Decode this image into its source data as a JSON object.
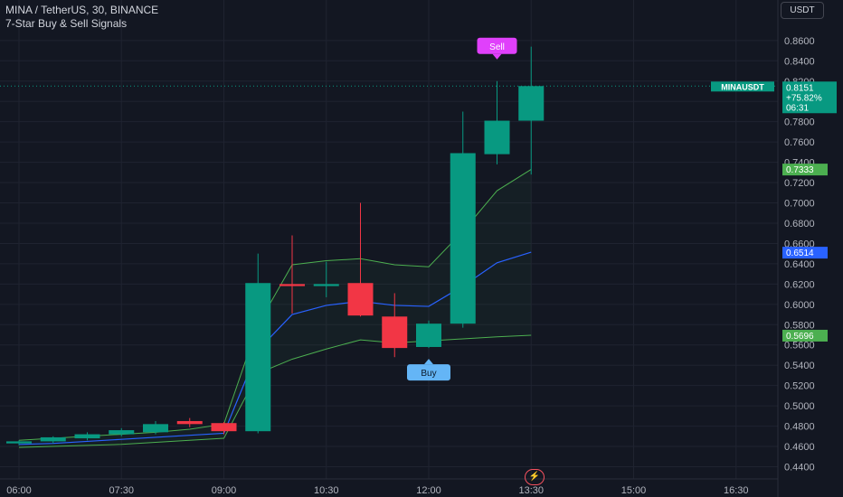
{
  "legend": {
    "title": "MINA / TetherUS, 30, BINANCE",
    "indicator": "7-Star Buy & Sell Signals"
  },
  "currency_button": "USDT",
  "icons": {
    "flash": "lightning-icon"
  },
  "colors": {
    "background": "#131722",
    "up": "#089981",
    "down": "#f23645",
    "band_line": "#4caf50",
    "mid_line": "#2962ff",
    "sell_label": "#e040fb",
    "buy_label": "#64b5f6"
  },
  "chart_data": {
    "type": "candlestick",
    "y_axis": {
      "range": [
        0.43,
        0.875
      ],
      "ticks": [
        "0.8600",
        "0.8400",
        "0.8200",
        "0.8000",
        "0.7800",
        "0.7600",
        "0.7400",
        "0.7200",
        "0.7000",
        "0.6800",
        "0.6600",
        "0.6400",
        "0.6200",
        "0.6000",
        "0.5800",
        "0.5600",
        "0.5400",
        "0.5200",
        "0.5000",
        "0.4800",
        "0.4600",
        "0.4400"
      ]
    },
    "x_axis": {
      "ticks": [
        "06:00",
        "07:30",
        "09:00",
        "10:30",
        "12:00",
        "13:30",
        "15:00",
        "16:30"
      ]
    },
    "candles": [
      {
        "time": "06:00",
        "open": 0.463,
        "high": 0.466,
        "low": 0.461,
        "close": 0.465
      },
      {
        "time": "06:30",
        "open": 0.465,
        "high": 0.47,
        "low": 0.463,
        "close": 0.469
      },
      {
        "time": "07:00",
        "open": 0.468,
        "high": 0.474,
        "low": 0.466,
        "close": 0.472
      },
      {
        "time": "07:30",
        "open": 0.472,
        "high": 0.478,
        "low": 0.47,
        "close": 0.476
      },
      {
        "time": "08:00",
        "open": 0.474,
        "high": 0.485,
        "low": 0.472,
        "close": 0.482
      },
      {
        "time": "08:30",
        "open": 0.485,
        "high": 0.488,
        "low": 0.479,
        "close": 0.482
      },
      {
        "time": "09:00",
        "open": 0.483,
        "high": 0.484,
        "low": 0.472,
        "close": 0.475
      },
      {
        "time": "09:30",
        "open": 0.475,
        "high": 0.65,
        "low": 0.473,
        "close": 0.621
      },
      {
        "time": "10:00",
        "open": 0.62,
        "high": 0.668,
        "low": 0.591,
        "close": 0.618
      },
      {
        "time": "10:30",
        "open": 0.618,
        "high": 0.642,
        "low": 0.607,
        "close": 0.62
      },
      {
        "time": "11:00",
        "open": 0.621,
        "high": 0.7,
        "low": 0.588,
        "close": 0.589
      },
      {
        "time": "11:30",
        "open": 0.588,
        "high": 0.611,
        "low": 0.548,
        "close": 0.557
      },
      {
        "time": "12:00",
        "open": 0.558,
        "high": 0.584,
        "low": 0.557,
        "close": 0.581
      },
      {
        "time": "12:30",
        "open": 0.581,
        "high": 0.79,
        "low": 0.577,
        "close": 0.749
      },
      {
        "time": "13:00",
        "open": 0.748,
        "high": 0.82,
        "low": 0.738,
        "close": 0.781
      },
      {
        "time": "13:30",
        "open": 0.781,
        "high": 0.854,
        "low": 0.728,
        "close": 0.8151
      }
    ],
    "bands": {
      "upper": [
        0.466,
        0.468,
        0.47,
        0.472,
        0.474,
        0.477,
        0.482,
        0.58,
        0.639,
        0.643,
        0.645,
        0.639,
        0.637,
        0.672,
        0.712,
        0.733
      ],
      "middle": [
        0.462,
        0.463,
        0.465,
        0.467,
        0.469,
        0.471,
        0.473,
        0.555,
        0.59,
        0.599,
        0.603,
        0.599,
        0.598,
        0.618,
        0.641,
        0.6514
      ],
      "lower": [
        0.459,
        0.46,
        0.461,
        0.462,
        0.464,
        0.466,
        0.468,
        0.532,
        0.546,
        0.556,
        0.565,
        0.562,
        0.564,
        0.566,
        0.568,
        0.5696
      ]
    },
    "signals": [
      {
        "label": "Sell",
        "time": "13:00"
      },
      {
        "label": "Buy",
        "time": "12:00"
      }
    ],
    "price_labels": [
      {
        "name": "MINAUSDT",
        "value": "0.8151",
        "change": "+75.82%",
        "countdown": "06:31",
        "kind": "last"
      },
      {
        "value": "0.7333",
        "kind": "upper"
      },
      {
        "value": "0.6514",
        "kind": "middle"
      },
      {
        "value": "0.5696",
        "kind": "lower"
      }
    ]
  }
}
